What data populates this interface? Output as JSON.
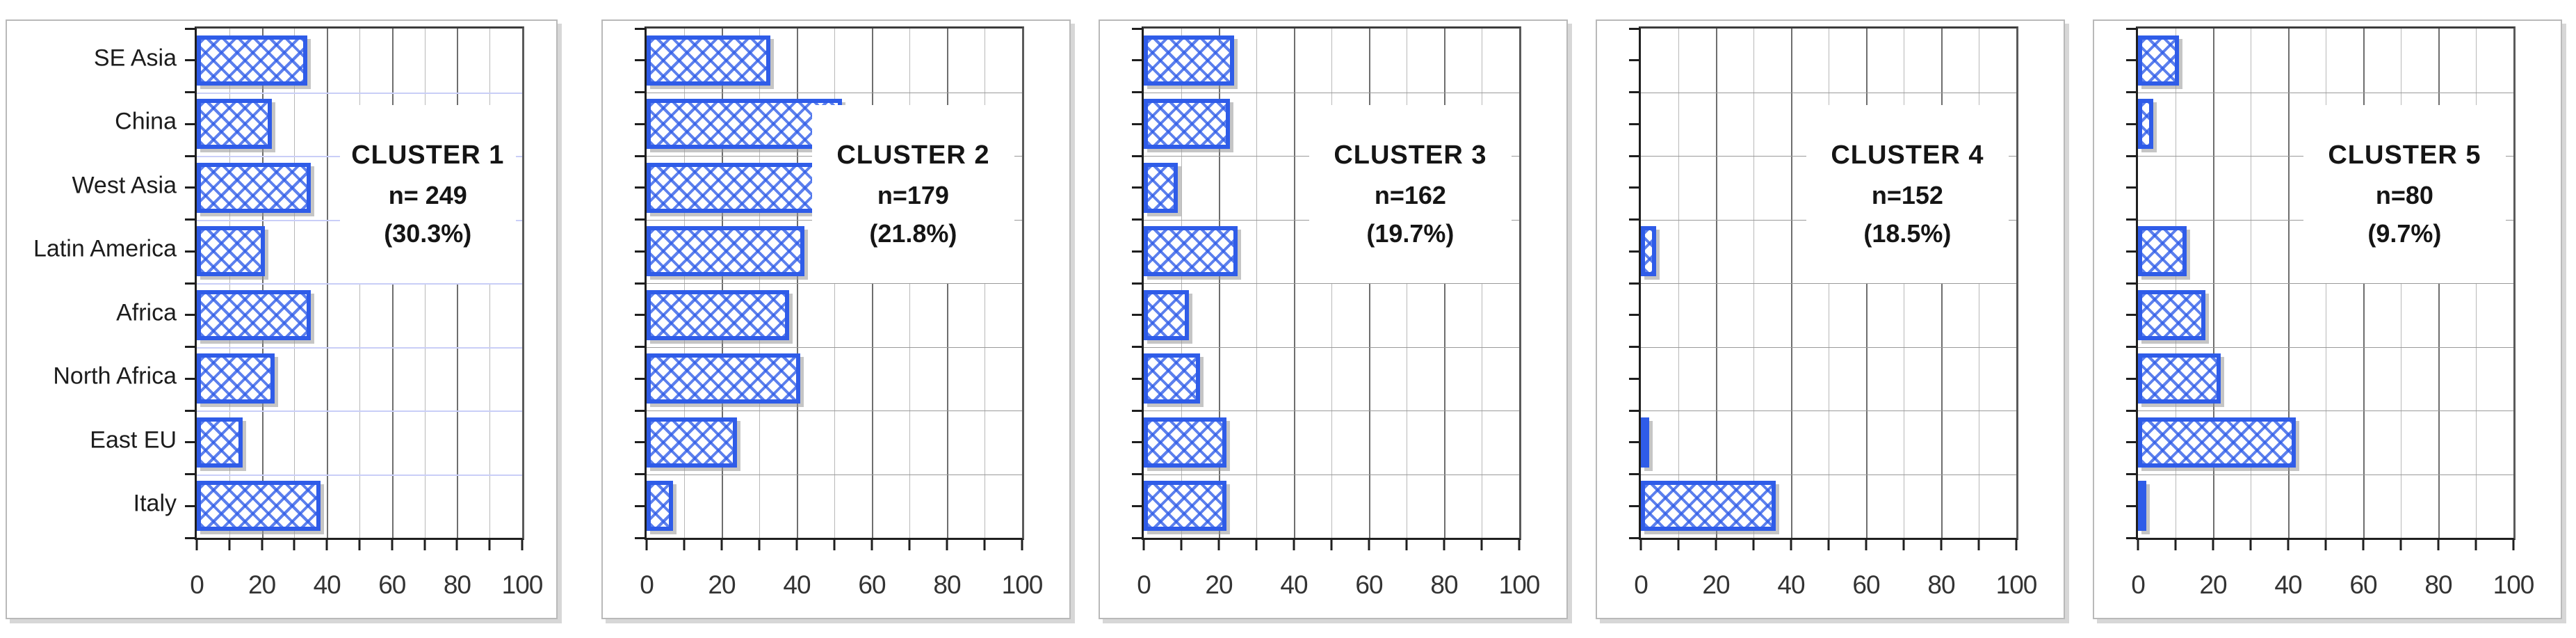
{
  "x_axis": {
    "min": 0,
    "max": 100,
    "tick_labels": [
      0,
      20,
      40,
      60,
      80,
      100
    ],
    "minor_tick_step": 10,
    "major_tick_step": 20
  },
  "categories": [
    "SE Asia",
    "China",
    "West Asia",
    "Latin America",
    "Africa",
    "North Africa",
    "East EU",
    "Italy"
  ],
  "chart_data": [
    {
      "type": "bar",
      "orientation": "horizontal",
      "title": "CLUSTER 1",
      "n_label": "n= 249",
      "pct_label": "(30.3%)",
      "categories": [
        "SE Asia",
        "China",
        "West Asia",
        "Latin America",
        "Africa",
        "North Africa",
        "East EU",
        "Italy"
      ],
      "values": [
        34,
        23,
        35,
        21,
        35,
        24,
        14,
        38
      ],
      "xlim": [
        0,
        100
      ],
      "grid": true,
      "show_category_labels": true
    },
    {
      "type": "bar",
      "orientation": "horizontal",
      "title": "CLUSTER 2",
      "n_label": "n=179",
      "pct_label": "(21.8%)",
      "categories": [
        "SE Asia",
        "China",
        "West Asia",
        "Latin America",
        "Africa",
        "North Africa",
        "East EU",
        "Italy"
      ],
      "values": [
        33,
        52,
        58,
        42,
        38,
        41,
        24,
        7
      ],
      "xlim": [
        0,
        100
      ],
      "grid": true,
      "show_category_labels": false
    },
    {
      "type": "bar",
      "orientation": "horizontal",
      "title": "CLUSTER 3",
      "n_label": "n=162",
      "pct_label": "(19.7%)",
      "categories": [
        "SE Asia",
        "China",
        "West Asia",
        "Latin America",
        "Africa",
        "North Africa",
        "East EU",
        "Italy"
      ],
      "values": [
        24,
        23,
        9,
        25,
        12,
        15,
        22,
        22
      ],
      "xlim": [
        0,
        100
      ],
      "grid": true,
      "show_category_labels": false
    },
    {
      "type": "bar",
      "orientation": "horizontal",
      "title": "CLUSTER 4",
      "n_label": "n=152",
      "pct_label": "(18.5%)",
      "categories": [
        "SE Asia",
        "China",
        "West Asia",
        "Latin America",
        "Africa",
        "North Africa",
        "East EU",
        "Italy"
      ],
      "values": [
        0,
        0,
        0,
        4,
        0,
        0,
        2,
        36
      ],
      "xlim": [
        0,
        100
      ],
      "grid": true,
      "show_category_labels": false
    },
    {
      "type": "bar",
      "orientation": "horizontal",
      "title": "CLUSTER 5",
      "n_label": "n=80",
      "pct_label": "(9.7%)",
      "categories": [
        "SE Asia",
        "China",
        "West Asia",
        "Latin America",
        "Africa",
        "North Africa",
        "East EU",
        "Italy"
      ],
      "values": [
        11,
        4,
        0,
        13,
        18,
        22,
        42,
        2
      ],
      "xlim": [
        0,
        100
      ],
      "grid": true,
      "show_category_labels": false
    }
  ],
  "colors": {
    "bar_blue": "#2f5ce8",
    "bar_hatch": "rgba(47,92,232,0.78)",
    "grid_minor": "#b8b8b8",
    "grid_major": "#6e6e6e",
    "row_line_gray": "#9a9a9a",
    "row_line_blue": "#c9cef7",
    "axis": "#1f1f1f",
    "panel_border": "#b9b9b9",
    "text": "#1c1c1c"
  }
}
